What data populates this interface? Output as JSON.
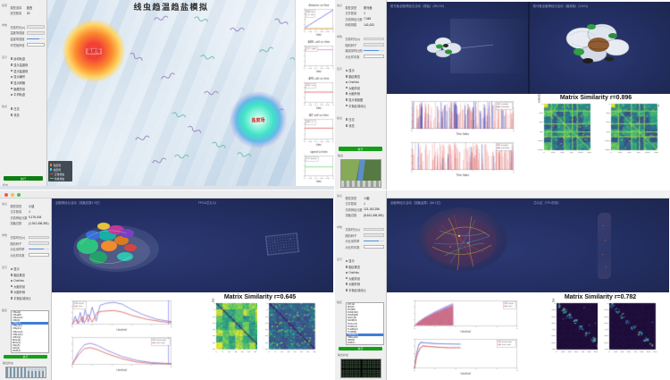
{
  "ui": {
    "navy": "#232e62",
    "green_button": "#12a016",
    "selection_blue": "#3d7fd6",
    "sidebar_bg": "#efefef"
  },
  "worm": {
    "title": "线虫趋温趋盐模拟",
    "heat_label": "温度场",
    "salt_label": "盐度场",
    "legend": [
      {
        "label": "温度场",
        "type": "dot",
        "color": "#ff8a1e"
      },
      {
        "label": "盐度场",
        "type": "square",
        "color": "#35dcc3"
      },
      {
        "label": "正常线虫",
        "type": "line",
        "color": "#d94b4b"
      },
      {
        "label": "仿真线虫",
        "type": "line",
        "color": "#57b957"
      }
    ],
    "sidebar": {
      "sections": [
        {
          "label": "模型",
          "rows": [
            [
              "模型选择",
              "线虫"
            ],
            [
              "线虫数量",
              "20"
            ]
          ]
        },
        {
          "label": "参数",
          "fields": [
            {
              "label": "仿真时长(s)",
              "kind": "ro",
              "value": ""
            },
            {
              "label": "温度场强度",
              "kind": "ro",
              "value": ""
            },
            {
              "label": "盐度场强度",
              "kind": "slider"
            },
            {
              "label": "环境噪声值",
              "kind": "input",
              "value": ""
            }
          ]
        },
        {
          "label": "显示",
          "items": [
            "运动轨迹",
            "显示温度场",
            "显示盐度场",
            "显示编号",
            "显示网格",
            "隐藏背景",
            "平滑轨迹"
          ]
        },
        {
          "label": "输出",
          "items": [
            "日志",
            "状态"
          ]
        }
      ],
      "run": "执行",
      "footer": "状态"
    }
  },
  "zebrafish": {
    "view_titles": [
      "斑马鱼全脑神经元活动（原始）(98,240)",
      "斑马鱼全脑神经元活动（缩减版）(9,824)"
    ],
    "sidebar": {
      "sections": [
        {
          "label": "信息",
          "rows": [
            [
              "模型类型",
              "斑马鱼"
            ],
            [
              "文件数量",
              "1"
            ],
            [
              "仿真神经元数",
              "7,048"
            ],
            [
              "网络规模",
              "142,433"
            ]
          ]
        },
        {
          "label": "参数",
          "fields": [
            {
              "label": "仿真时长(s)",
              "kind": "ro",
              "value": ""
            },
            {
              "label": "随机种子",
              "kind": "ro",
              "value": ""
            },
            {
              "label": "缩减采样比例",
              "kind": "slider"
            },
            {
              "label": "对比样本数",
              "kind": "input",
              "value": ""
            }
          ]
        },
        {
          "label": "显示",
          "items": [
            "显示",
            "脑区概览",
            "OneNeu",
            "大脑背景",
            "大脑外侧",
            "显示电极图",
            "平衡区域对比"
          ]
        },
        {
          "label": "输出",
          "items": [
            "日志",
            "状态"
          ]
        }
      ],
      "run": "执行",
      "footer": "输出",
      "thumb": "thumb-zf"
    }
  },
  "mouse": {
    "view_titles": [
      "全脑神经元活动（突触总数1.9亿）",
      "FPGA芯片(1)"
    ],
    "sidebar": {
      "sections": [
        {
          "label": "信息",
          "rows": [
            [
              "模型类型",
              "小鼠"
            ],
            [
              "文件数量",
              "1"
            ],
            [
              "仿真神经元数",
              "9,176,404"
            ],
            [
              "突触总数",
              "(1,912,406,351)"
            ]
          ]
        },
        {
          "label": "参数",
          "fields": [
            {
              "label": "仿真时长(s)",
              "kind": "ro",
              "value": ""
            },
            {
              "label": "随机种子",
              "kind": "ro",
              "value": ""
            },
            {
              "label": "对比采样率",
              "kind": "slider"
            },
            {
              "label": "对比样本数",
              "kind": "input",
              "value": ""
            }
          ]
        },
        {
          "label": "显示",
          "items": [
            "显示",
            "脑区概览",
            "OneNeu",
            "大脑背景",
            "大脑外侧",
            "平衡区域对比"
          ]
        },
        {
          "label": "脑区",
          "list": {
            "selected": 4,
            "items": [
              "VISa(4)",
              "VISal(8)",
              "VISam(2)",
              "VISl(3)",
              "VISli(1)",
              "VISp(12)",
              "VISpl(1)",
              "VISpm(2)",
              "VISpor(1)",
              "VISrl(1)",
              "MOp(2)",
              "MOs(1)",
              "SSp(6)",
              "SSs(1)",
              "RSP(3)"
            ]
          }
        }
      ],
      "run": "执行",
      "footer": "输出状态",
      "thumb": "thumb-stripes"
    }
  },
  "human": {
    "view_titles": [
      "全脑神经元活动（突触运算）(86.1亿)",
      "芯片区（TPU仿真）"
    ],
    "sidebar": {
      "sections": [
        {
          "label": "信息",
          "rows": [
            [
              "模型类型",
              "人脑"
            ],
            [
              "文件数量",
              "1"
            ],
            [
              "仿真神经元数",
              "121,152,256"
            ],
            [
              "突触总数",
              "(8,612,406,351)"
            ]
          ]
        },
        {
          "label": "参数",
          "fields": [
            {
              "label": "仿真时长(s)",
              "kind": "ro",
              "value": ""
            },
            {
              "label": "随机种子",
              "kind": "ro",
              "value": ""
            },
            {
              "label": "对比采样率",
              "kind": "slider"
            },
            {
              "label": "对比样本数",
              "kind": "input",
              "value": ""
            }
          ]
        },
        {
          "label": "显示",
          "items": [
            "显示",
            "脑区概览",
            "OneNeu",
            "大脑背景",
            "大脑外侧",
            "平衡区域对比"
          ]
        },
        {
          "label": "脑区",
          "list": {
            "selected": 11,
            "items": [
              "FP(14)",
              "MC(8)",
              "PO(28)",
              "PLM(102)",
              "PLM(328)",
              "NpCx(5)",
              "SLOB(3)",
              "ThOcc(7)",
              "ThlMx(4)",
              "TLHB(12)",
              "TLNB(9)",
              "Visual(11)",
              "VMsup(6)",
              "WM(2)",
              "DWI(1)"
            ]
          }
        }
      ],
      "run": "执行",
      "footer": "输出状态",
      "thumb": "thumb-grid"
    }
  },
  "chart_data": [
    {
      "id": "worm_mini_1",
      "type": "line",
      "title": "distance vs time",
      "xlabel": "time",
      "x_ticks": [
        "0",
        "0.2",
        "0.4",
        "0.6",
        "0.8",
        "1"
      ],
      "legend": [
        "w0",
        "w1"
      ],
      "legend_pos": "tl",
      "series": [
        {
          "name": "w0",
          "color": "#6a6ae0",
          "points": [
            [
              0,
              0.08
            ],
            [
              1,
              0.95
            ]
          ]
        },
        {
          "name": "w1",
          "color": "#f0a84a",
          "points": [
            [
              0,
              0.05
            ],
            [
              1,
              0.05
            ]
          ]
        }
      ]
    },
    {
      "id": "worm_mini_2",
      "type": "line",
      "title": "ASEL volt vs time",
      "xlabel": "time",
      "x_ticks": [
        "0",
        "0.2",
        "0.4",
        "0.6",
        "0.8",
        "1"
      ],
      "legend": [
        "ASEL"
      ],
      "legend_pos": "tl",
      "series": [
        {
          "name": "ASEL",
          "color": "#ef7fd6",
          "points": [
            [
              0,
              0.8
            ],
            [
              1,
              0.8
            ]
          ]
        }
      ]
    },
    {
      "id": "worm_mini_3",
      "type": "line",
      "title": "AFD volt vs time",
      "xlabel": "time",
      "x_ticks": [
        "0",
        "0.2",
        "0.4",
        "0.6",
        "0.8",
        "1"
      ],
      "legend": [
        "AFD"
      ],
      "legend_pos": "tl",
      "series": [
        {
          "name": "AFD",
          "color": "#e05b5b",
          "points": [
            [
              0,
              0.52
            ],
            [
              1,
              0.52
            ]
          ]
        }
      ]
    },
    {
      "id": "worm_mini_4",
      "type": "line",
      "title": "AIY volt vs time",
      "xlabel": "time",
      "x_ticks": [
        "0",
        "0.2",
        "0.4",
        "0.6",
        "0.8",
        "1"
      ],
      "legend": [
        "AIY"
      ],
      "legend_pos": "tl",
      "series": [
        {
          "name": "AIY",
          "color": "#e05b5b",
          "points": [
            [
              0,
              0.55
            ],
            [
              1,
              0.55
            ]
          ]
        }
      ]
    },
    {
      "id": "worm_mini_5",
      "type": "line",
      "title": "speed vs time",
      "xlabel": "time",
      "x_ticks": [
        "0",
        "0.2",
        "0.4",
        "0.6",
        "0.8",
        "1"
      ],
      "legend": [
        "speed"
      ],
      "legend_pos": "tl",
      "series": [
        {
          "name": "speed",
          "color": "#74d874",
          "points": [
            [
              0,
              0.45
            ],
            [
              1,
              0.45
            ]
          ]
        }
      ]
    },
    {
      "id": "zf_act_top",
      "type": "line",
      "style": "spikes",
      "xlabel": "Time Index",
      "legend": [
        "original",
        "cutdown"
      ],
      "legend_pos": "tr",
      "colors": [
        "#d94b4b",
        "#4353c8"
      ],
      "n_spikes": 130,
      "blue_ratio": 0.35,
      "seed": 11,
      "ylim": [
        0,
        8
      ]
    },
    {
      "id": "zf_act_bottom",
      "type": "line",
      "style": "spikes",
      "xlabel": "Time Index",
      "legend": [
        "original",
        "cutdown"
      ],
      "legend_pos": "tr",
      "colors": [
        "#d94b4b",
        "#4353c8"
      ],
      "n_spikes": 140,
      "blue_ratio": 0.05,
      "seed": 29,
      "ylim": [
        0,
        8
      ]
    },
    {
      "id": "zf_sim",
      "type": "heatmap",
      "suptitle": "Matrix Similarity r=0.896",
      "maps": [
        {
          "title": "Zebrafish Original (downsampled)",
          "pattern": "zfblocks"
        },
        {
          "title": "Zebrafish Cutdown (downsampled)",
          "pattern": "zfblocks"
        }
      ],
      "xlabel": "Node Index (Scaled)",
      "ylabel": "Node Index (Scaled)",
      "ticks": [
        0,
        250,
        500,
        750,
        1000,
        1250
      ],
      "n": 46,
      "palette": "viridis",
      "seeds": [
        3,
        9
      ]
    },
    {
      "id": "mouse_act_top",
      "type": "line",
      "xlabel": "time(ms)",
      "legend": [
        "brain",
        "chip"
      ],
      "legend_pos": "tl",
      "vline": 0.97,
      "series": [
        {
          "name": "brain",
          "color": "#7b7bdc",
          "points": [
            [
              0,
              0.02
            ],
            [
              0.03,
              0.35
            ],
            [
              0.05,
              0.06
            ],
            [
              0.08,
              0.5
            ],
            [
              0.1,
              0.08
            ],
            [
              0.13,
              0.62
            ],
            [
              0.16,
              0.1
            ],
            [
              0.2,
              0.72
            ],
            [
              0.24,
              0.14
            ],
            [
              0.28,
              0.8
            ],
            [
              0.34,
              0.88
            ],
            [
              0.42,
              0.92
            ],
            [
              0.5,
              0.85
            ],
            [
              0.6,
              0.62
            ],
            [
              0.72,
              0.4
            ],
            [
              0.85,
              0.22
            ],
            [
              1,
              0.12
            ]
          ]
        },
        {
          "name": "chip",
          "color": "#d95555",
          "points": [
            [
              0,
              0.02
            ],
            [
              0.04,
              0.22
            ],
            [
              0.06,
              0.04
            ],
            [
              0.1,
              0.32
            ],
            [
              0.12,
              0.06
            ],
            [
              0.16,
              0.42
            ],
            [
              0.2,
              0.1
            ],
            [
              0.25,
              0.5
            ],
            [
              0.3,
              0.55
            ],
            [
              0.42,
              0.58
            ],
            [
              0.5,
              0.52
            ],
            [
              0.6,
              0.38
            ],
            [
              0.75,
              0.22
            ],
            [
              0.9,
              0.12
            ],
            [
              1,
              0.08
            ]
          ]
        }
      ]
    },
    {
      "id": "mouse_act_bottom",
      "type": "line",
      "xlabel": "time(ms)",
      "legend": [
        "brain rate",
        "chip rate"
      ],
      "legend_pos": "tr",
      "vline": 0.97,
      "series": [
        {
          "name": "brain rate",
          "color": "#7b7bdc",
          "points": [
            [
              0,
              0.02
            ],
            [
              0.06,
              0.45
            ],
            [
              0.12,
              0.72
            ],
            [
              0.18,
              0.78
            ],
            [
              0.25,
              0.7
            ],
            [
              0.35,
              0.52
            ],
            [
              0.5,
              0.3
            ],
            [
              0.65,
              0.16
            ],
            [
              0.8,
              0.08
            ],
            [
              1,
              0.04
            ]
          ]
        },
        {
          "name": "chip rate",
          "color": "#d95555",
          "points": [
            [
              0,
              0.02
            ],
            [
              0.06,
              0.35
            ],
            [
              0.12,
              0.58
            ],
            [
              0.18,
              0.62
            ],
            [
              0.25,
              0.55
            ],
            [
              0.35,
              0.4
            ],
            [
              0.5,
              0.22
            ],
            [
              0.65,
              0.1
            ],
            [
              0.8,
              0.05
            ],
            [
              1,
              0.03
            ]
          ]
        }
      ]
    },
    {
      "id": "mouse_sim",
      "type": "heatmap",
      "suptitle": "Matrix Similarity r=0.645",
      "maps": [
        {
          "title": "Brain Region Connections",
          "pattern": "bright"
        },
        {
          "title": "Chip Region Connections",
          "pattern": "dim"
        }
      ],
      "xlabel": "Region Index",
      "ylabel": "Region Index",
      "ticks": [
        0,
        5,
        10,
        15,
        20,
        25,
        30,
        35
      ],
      "n": 36,
      "palette": "viridis",
      "seeds": [
        5,
        17
      ]
    },
    {
      "id": "human_act_top",
      "type": "line",
      "style": "burst",
      "xlabel": "time(ms)",
      "legend": [
        "brain",
        "chip"
      ],
      "legend_pos": "tr",
      "colors": [
        "#8a6ad8",
        "#d95555"
      ],
      "x_end": 0.38,
      "freq": 26,
      "seed": 41
    },
    {
      "id": "human_act_bottom",
      "type": "line",
      "xlabel": "time(ms)",
      "legend": [
        "brain rate",
        "chip rate"
      ],
      "legend_pos": "tr",
      "markers": true,
      "series": [
        {
          "name": "brain rate",
          "color": "#6a7ad8",
          "points": [
            [
              0,
              0.02
            ],
            [
              0.02,
              0.5
            ],
            [
              0.04,
              0.78
            ],
            [
              0.06,
              0.88
            ],
            [
              0.12,
              0.86
            ],
            [
              0.2,
              0.84
            ],
            [
              0.3,
              0.83
            ],
            [
              0.45,
              0.82
            ]
          ]
        },
        {
          "name": "chip rate",
          "color": "#d95555",
          "points": [
            [
              0,
              0.02
            ],
            [
              0.02,
              0.4
            ],
            [
              0.05,
              0.66
            ],
            [
              0.08,
              0.76
            ],
            [
              0.14,
              0.74
            ],
            [
              0.22,
              0.72
            ],
            [
              0.32,
              0.7
            ],
            [
              0.45,
              0.7
            ]
          ]
        }
      ]
    },
    {
      "id": "human_sim",
      "type": "heatmap",
      "suptitle": "Matrix Similarity r=0.782",
      "maps": [
        {
          "title": "Brain Region Connections",
          "pattern": "clusters"
        },
        {
          "title": "Chip Region Connections",
          "pattern": "clusters-dim"
        }
      ],
      "xlabel": "Region Index",
      "ylabel": "Region Index",
      "ticks": [
        0,
        100,
        200,
        300,
        400,
        500,
        600,
        700
      ],
      "n": 44,
      "palette": "deep",
      "seeds": [
        7,
        23
      ]
    }
  ]
}
